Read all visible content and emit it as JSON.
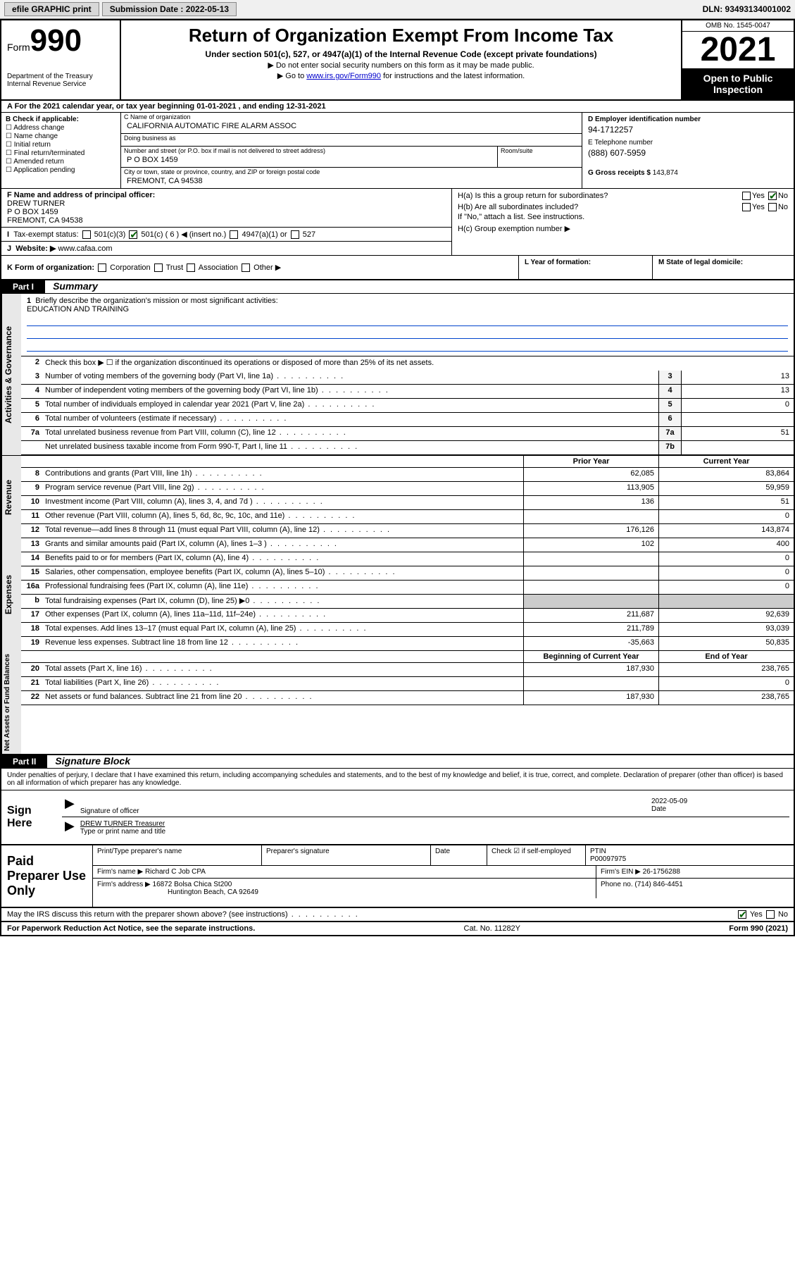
{
  "toolbar": {
    "efile": "efile GRAPHIC print",
    "submission_label": "Submission Date : 2022-05-13",
    "dln": "DLN: 93493134001002"
  },
  "header": {
    "form_prefix": "Form",
    "form_number": "990",
    "title": "Return of Organization Exempt From Income Tax",
    "subtitle": "Under section 501(c), 527, or 4947(a)(1) of the Internal Revenue Code (except private foundations)",
    "note1": "Do not enter social security numbers on this form as it may be made public.",
    "note2_pre": "Go to ",
    "note2_link": "www.irs.gov/Form990",
    "note2_post": " for instructions and the latest information.",
    "dept": "Department of the Treasury\nInternal Revenue Service",
    "omb": "OMB No. 1545-0047",
    "year": "2021",
    "open": "Open to Public Inspection"
  },
  "row_a": "A For the 2021 calendar year, or tax year beginning 01-01-2021   , and ending 12-31-2021",
  "col_b": {
    "label": "B Check if applicable:",
    "items": [
      "Address change",
      "Name change",
      "Initial return",
      "Final return/terminated",
      "Amended return",
      "Application pending"
    ]
  },
  "col_c": {
    "name_label": "C Name of organization",
    "name": "CALIFORNIA AUTOMATIC FIRE ALARM ASSOC",
    "dba_label": "Doing business as",
    "dba": "",
    "street_label": "Number and street (or P.O. box if mail is not delivered to street address)",
    "room_label": "Room/suite",
    "street": "P O BOX 1459",
    "city_label": "City or town, state or province, country, and ZIP or foreign postal code",
    "city": "FREMONT, CA  94538"
  },
  "col_d": {
    "ein_label": "D Employer identification number",
    "ein": "94-1712257",
    "phone_label": "E Telephone number",
    "phone": "(888) 607-5959",
    "gross_label": "G Gross receipts $ ",
    "gross": "143,874"
  },
  "section_f": {
    "label": "F  Name and address of principal officer:",
    "name": "DREW TURNER",
    "street": "P O BOX 1459",
    "city": "FREMONT, CA  94538"
  },
  "section_i": {
    "label": "Tax-exempt status:",
    "opts": [
      "501(c)(3)",
      "501(c) ( 6 ) ◀ (insert no.)",
      "4947(a)(1) or",
      "527"
    ]
  },
  "section_j": {
    "label": "Website: ▶ ",
    "val": "www.cafaa.com"
  },
  "section_h": {
    "a": "H(a)  Is this a group return for subordinates?",
    "b": "H(b)  Are all subordinates included?",
    "b_note": "If \"No,\" attach a list. See instructions.",
    "c": "H(c)  Group exemption number ▶"
  },
  "section_k": "K Form of organization:",
  "k_opts": [
    "Corporation",
    "Trust",
    "Association",
    "Other ▶"
  ],
  "section_l": "L Year of formation:",
  "section_m": "M State of legal domicile:",
  "part1": {
    "hdr": "Part I",
    "title": "Summary",
    "q1": "Briefly describe the organization's mission or most significant activities:",
    "q1_val": "EDUCATION AND TRAINING",
    "q2": "Check this box ▶ ☐  if the organization discontinued its operations or disposed of more than 25% of its net assets.",
    "lines_gov": [
      {
        "n": "3",
        "t": "Number of voting members of the governing body (Part VI, line 1a)",
        "box": "3",
        "v": "13"
      },
      {
        "n": "4",
        "t": "Number of independent voting members of the governing body (Part VI, line 1b)",
        "box": "4",
        "v": "13"
      },
      {
        "n": "5",
        "t": "Total number of individuals employed in calendar year 2021 (Part V, line 2a)",
        "box": "5",
        "v": "0"
      },
      {
        "n": "6",
        "t": "Total number of volunteers (estimate if necessary)",
        "box": "6",
        "v": ""
      },
      {
        "n": "7a",
        "t": "Total unrelated business revenue from Part VIII, column (C), line 12",
        "box": "7a",
        "v": "51"
      },
      {
        "n": "",
        "t": "Net unrelated business taxable income from Form 990-T, Part I, line 11",
        "box": "7b",
        "v": ""
      }
    ],
    "prior_hdr": "Prior Year",
    "curr_hdr": "Current Year",
    "lines_rev": [
      {
        "n": "8",
        "t": "Contributions and grants (Part VIII, line 1h)",
        "p": "62,085",
        "c": "83,864"
      },
      {
        "n": "9",
        "t": "Program service revenue (Part VIII, line 2g)",
        "p": "113,905",
        "c": "59,959"
      },
      {
        "n": "10",
        "t": "Investment income (Part VIII, column (A), lines 3, 4, and 7d )",
        "p": "136",
        "c": "51"
      },
      {
        "n": "11",
        "t": "Other revenue (Part VIII, column (A), lines 5, 6d, 8c, 9c, 10c, and 11e)",
        "p": "",
        "c": "0"
      },
      {
        "n": "12",
        "t": "Total revenue—add lines 8 through 11 (must equal Part VIII, column (A), line 12)",
        "p": "176,126",
        "c": "143,874"
      }
    ],
    "lines_exp": [
      {
        "n": "13",
        "t": "Grants and similar amounts paid (Part IX, column (A), lines 1–3 )",
        "p": "102",
        "c": "400"
      },
      {
        "n": "14",
        "t": "Benefits paid to or for members (Part IX, column (A), line 4)",
        "p": "",
        "c": "0"
      },
      {
        "n": "15",
        "t": "Salaries, other compensation, employee benefits (Part IX, column (A), lines 5–10)",
        "p": "",
        "c": "0"
      },
      {
        "n": "16a",
        "t": "Professional fundraising fees (Part IX, column (A), line 11e)",
        "p": "",
        "c": "0"
      },
      {
        "n": "b",
        "t": "Total fundraising expenses (Part IX, column (D), line 25) ▶0",
        "p": "shade",
        "c": "shade"
      },
      {
        "n": "17",
        "t": "Other expenses (Part IX, column (A), lines 11a–11d, 11f–24e)",
        "p": "211,687",
        "c": "92,639"
      },
      {
        "n": "18",
        "t": "Total expenses. Add lines 13–17 (must equal Part IX, column (A), line 25)",
        "p": "211,789",
        "c": "93,039"
      },
      {
        "n": "19",
        "t": "Revenue less expenses. Subtract line 18 from line 12",
        "p": "-35,663",
        "c": "50,835"
      }
    ],
    "net_hdr_l": "Beginning of Current Year",
    "net_hdr_r": "End of Year",
    "lines_net": [
      {
        "n": "20",
        "t": "Total assets (Part X, line 16)",
        "p": "187,930",
        "c": "238,765"
      },
      {
        "n": "21",
        "t": "Total liabilities (Part X, line 26)",
        "p": "",
        "c": "0"
      },
      {
        "n": "22",
        "t": "Net assets or fund balances. Subtract line 21 from line 20",
        "p": "187,930",
        "c": "238,765"
      }
    ],
    "vtab_gov": "Activities & Governance",
    "vtab_rev": "Revenue",
    "vtab_exp": "Expenses",
    "vtab_net": "Net Assets or Fund Balances"
  },
  "part2": {
    "hdr": "Part II",
    "title": "Signature Block",
    "decl": "Under penalties of perjury, I declare that I have examined this return, including accompanying schedules and statements, and to the best of my knowledge and belief, it is true, correct, and complete. Declaration of preparer (other than officer) is based on all information of which preparer has any knowledge.",
    "sign_here": "Sign Here",
    "sig_officer": "Signature of officer",
    "sig_date": "2022-05-09",
    "date_lbl": "Date",
    "officer_name": "DREW TURNER Treasurer",
    "officer_lbl": "Type or print name and title",
    "paid": "Paid Preparer Use Only",
    "prep_name_lbl": "Print/Type preparer's name",
    "prep_sig_lbl": "Preparer's signature",
    "prep_date_lbl": "Date",
    "prep_check": "Check ☑ if self-employed",
    "ptin_lbl": "PTIN",
    "ptin": "P00097975",
    "firm_name_lbl": "Firm's name    ▶ ",
    "firm_name": "Richard C Job CPA",
    "firm_ein_lbl": "Firm's EIN ▶ ",
    "firm_ein": "26-1756288",
    "firm_addr_lbl": "Firm's address ▶ ",
    "firm_addr1": "16872 Bolsa Chica St200",
    "firm_addr2": "Huntington Beach, CA  92649",
    "firm_phone_lbl": "Phone no. ",
    "firm_phone": "(714) 846-4451"
  },
  "footer": {
    "discuss": "May the IRS discuss this return with the preparer shown above? (see instructions)",
    "yes": "Yes",
    "no": "No",
    "paperwork": "For Paperwork Reduction Act Notice, see the separate instructions.",
    "cat": "Cat. No. 11282Y",
    "form": "Form 990 (2021)"
  }
}
